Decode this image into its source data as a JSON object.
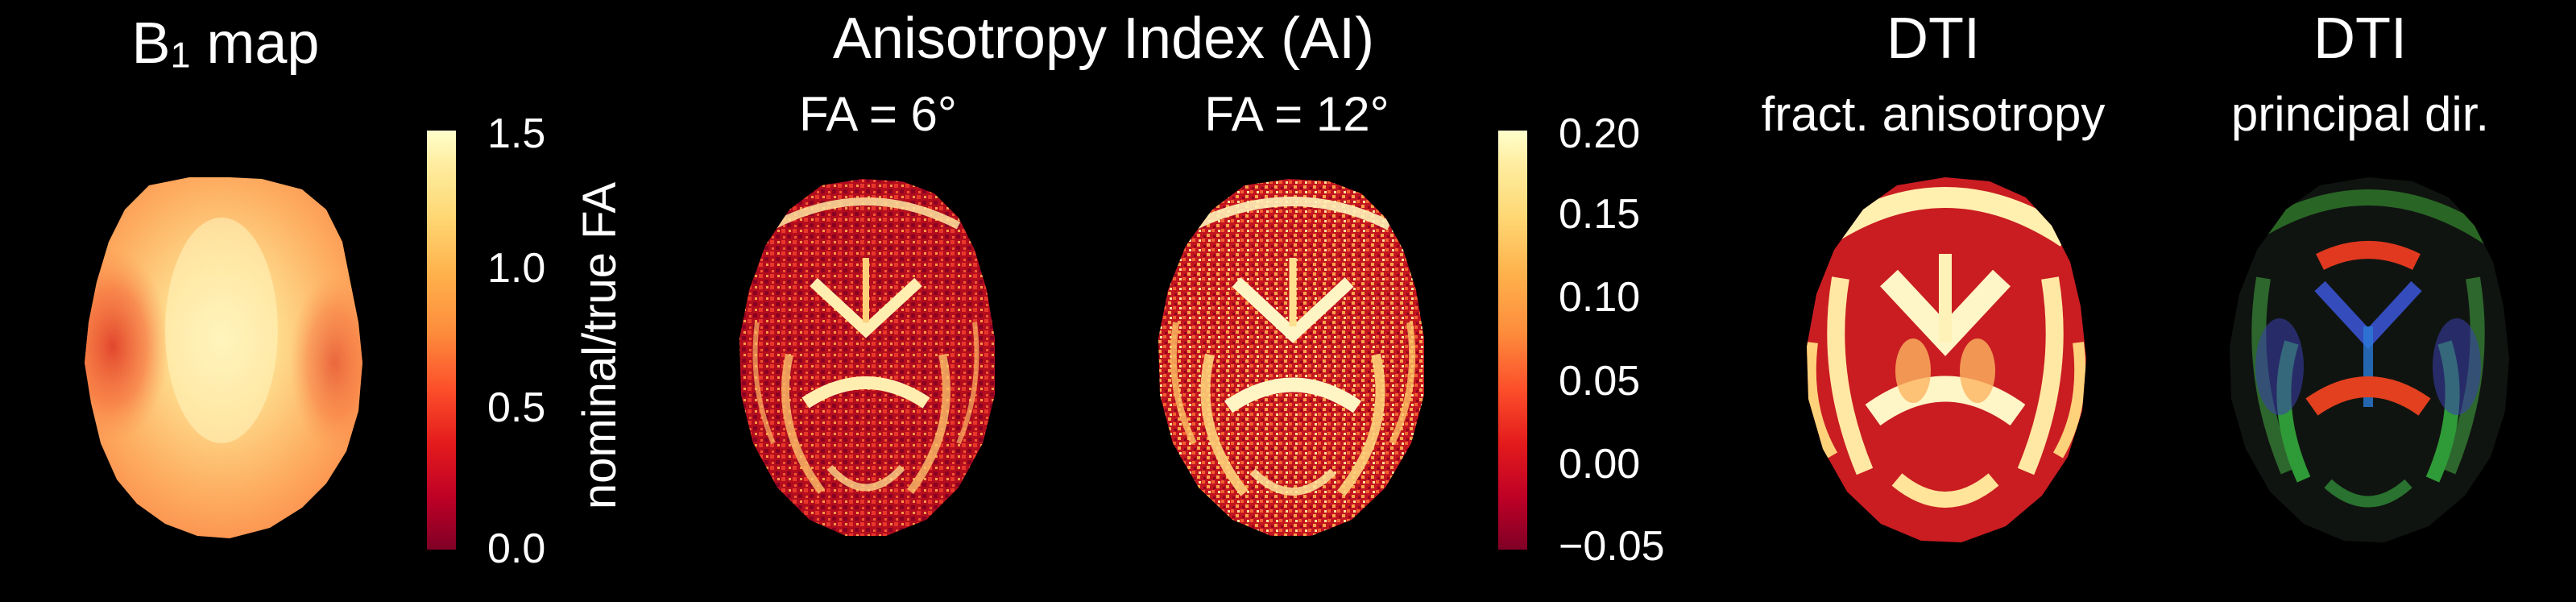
{
  "panels": {
    "b1": {
      "title_main": "B",
      "title_sub": "1",
      "title_rest": " map",
      "colorbar": {
        "ticks": [
          "1.5",
          "1.0",
          "0.5",
          "0.0"
        ],
        "label": "nominal/true FA"
      }
    },
    "ai": {
      "title": "Anisotropy Index (AI)",
      "sub_left": "FA = 6°",
      "sub_right": "FA = 12°",
      "colorbar": {
        "ticks": [
          "0.20",
          "0.15",
          "0.10",
          "0.05",
          "0.00",
          "−0.05"
        ]
      }
    },
    "dti_fa": {
      "title": "DTI",
      "subtitle": "fract. anisotropy"
    },
    "dti_dir": {
      "title": "DTI",
      "subtitle": "principal dir."
    }
  },
  "colors": {
    "background": "#000000",
    "colormap": [
      "#800026",
      "#bd0026",
      "#e31a1c",
      "#fc4e2a",
      "#fd8d3c",
      "#feb24c",
      "#fed976",
      "#ffeda0",
      "#ffffcc"
    ]
  }
}
